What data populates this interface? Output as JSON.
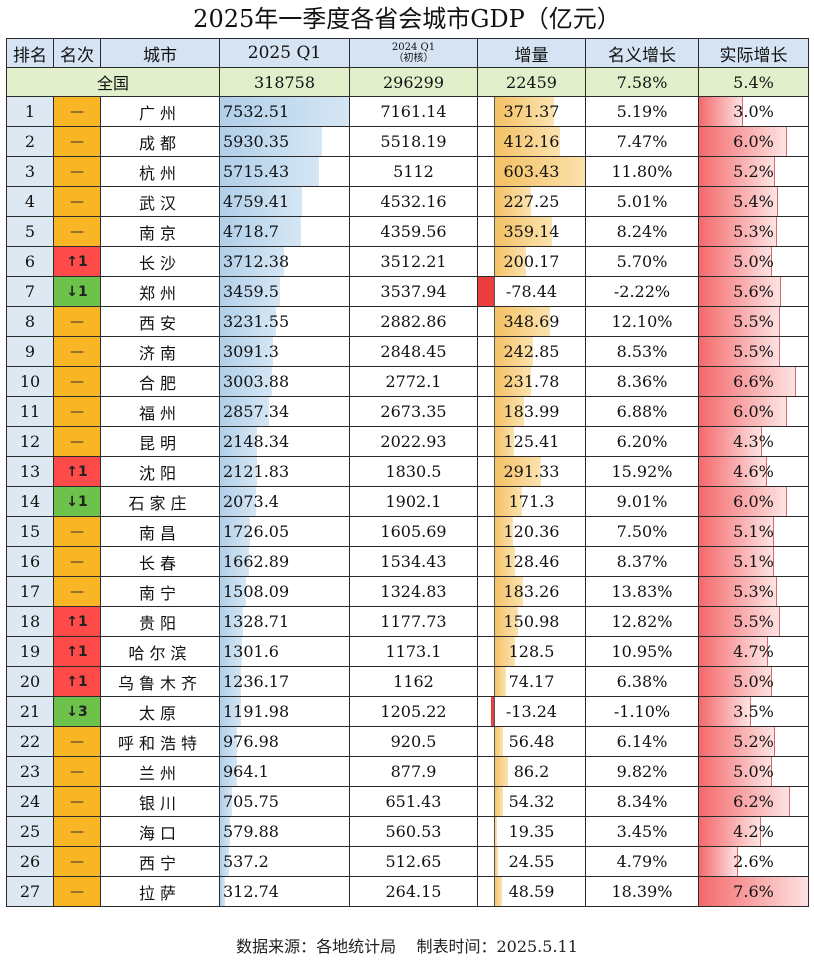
{
  "title": "2025年一季度各省会城市GDP（亿元）",
  "headers": [
    "排名",
    "名次",
    "城市",
    "2025 Q1",
    "2024 Q1",
    "增量",
    "名义增长",
    "实际增长"
  ],
  "header_2024_note": "（初核）",
  "total": {
    "label": "全国",
    "gdp_2025": "318758",
    "gdp_2024": "296299",
    "increase": "22459",
    "nominal": "7.58%",
    "real": "5.4%"
  },
  "colors": {
    "same": "#f8b624",
    "up": "#ff4a4a",
    "down": "#6cc24a",
    "gdp_bar": "#b0cfe9",
    "increase_bar": "#f4c062",
    "growth_bar": "#f4696b"
  },
  "rows": [
    {
      "rank": "1",
      "change": "—",
      "city": "广州",
      "gdp_2025": "7532.51",
      "gdp_2024": "7161.14",
      "increase": "371.37",
      "nominal": "5.19%",
      "real": "3.0%"
    },
    {
      "rank": "2",
      "change": "—",
      "city": "成都",
      "gdp_2025": "5930.35",
      "gdp_2024": "5518.19",
      "increase": "412.16",
      "nominal": "7.47%",
      "real": "6.0%"
    },
    {
      "rank": "3",
      "change": "—",
      "city": "杭州",
      "gdp_2025": "5715.43",
      "gdp_2024": "5112",
      "increase": "603.43",
      "nominal": "11.80%",
      "real": "5.2%"
    },
    {
      "rank": "4",
      "change": "—",
      "city": "武汉",
      "gdp_2025": "4759.41",
      "gdp_2024": "4532.16",
      "increase": "227.25",
      "nominal": "5.01%",
      "real": "5.4%"
    },
    {
      "rank": "5",
      "change": "—",
      "city": "南京",
      "gdp_2025": "4718.7",
      "gdp_2024": "4359.56",
      "increase": "359.14",
      "nominal": "8.24%",
      "real": "5.3%"
    },
    {
      "rank": "6",
      "change": "↑1",
      "city": "长沙",
      "gdp_2025": "3712.38",
      "gdp_2024": "3512.21",
      "increase": "200.17",
      "nominal": "5.70%",
      "real": "5.0%"
    },
    {
      "rank": "7",
      "change": "↓1",
      "city": "郑州",
      "gdp_2025": "3459.5",
      "gdp_2024": "3537.94",
      "increase": "-78.44",
      "nominal": "-2.22%",
      "real": "5.6%"
    },
    {
      "rank": "8",
      "change": "—",
      "city": "西安",
      "gdp_2025": "3231.55",
      "gdp_2024": "2882.86",
      "increase": "348.69",
      "nominal": "12.10%",
      "real": "5.5%"
    },
    {
      "rank": "9",
      "change": "—",
      "city": "济南",
      "gdp_2025": "3091.3",
      "gdp_2024": "2848.45",
      "increase": "242.85",
      "nominal": "8.53%",
      "real": "5.5%"
    },
    {
      "rank": "10",
      "change": "—",
      "city": "合肥",
      "gdp_2025": "3003.88",
      "gdp_2024": "2772.1",
      "increase": "231.78",
      "nominal": "8.36%",
      "real": "6.6%"
    },
    {
      "rank": "11",
      "change": "—",
      "city": "福州",
      "gdp_2025": "2857.34",
      "gdp_2024": "2673.35",
      "increase": "183.99",
      "nominal": "6.88%",
      "real": "6.0%"
    },
    {
      "rank": "12",
      "change": "—",
      "city": "昆明",
      "gdp_2025": "2148.34",
      "gdp_2024": "2022.93",
      "increase": "125.41",
      "nominal": "6.20%",
      "real": "4.3%"
    },
    {
      "rank": "13",
      "change": "↑1",
      "city": "沈阳",
      "gdp_2025": "2121.83",
      "gdp_2024": "1830.5",
      "increase": "291.33",
      "nominal": "15.92%",
      "real": "4.6%"
    },
    {
      "rank": "14",
      "change": "↓1",
      "city": "石家庄",
      "gdp_2025": "2073.4",
      "gdp_2024": "1902.1",
      "increase": "171.3",
      "nominal": "9.01%",
      "real": "6.0%"
    },
    {
      "rank": "15",
      "change": "—",
      "city": "南昌",
      "gdp_2025": "1726.05",
      "gdp_2024": "1605.69",
      "increase": "120.36",
      "nominal": "7.50%",
      "real": "5.1%"
    },
    {
      "rank": "16",
      "change": "—",
      "city": "长春",
      "gdp_2025": "1662.89",
      "gdp_2024": "1534.43",
      "increase": "128.46",
      "nominal": "8.37%",
      "real": "5.1%"
    },
    {
      "rank": "17",
      "change": "—",
      "city": "南宁",
      "gdp_2025": "1508.09",
      "gdp_2024": "1324.83",
      "increase": "183.26",
      "nominal": "13.83%",
      "real": "5.3%"
    },
    {
      "rank": "18",
      "change": "↑1",
      "city": "贵阳",
      "gdp_2025": "1328.71",
      "gdp_2024": "1177.73",
      "increase": "150.98",
      "nominal": "12.82%",
      "real": "5.5%"
    },
    {
      "rank": "19",
      "change": "↑1",
      "city": "哈尔滨",
      "gdp_2025": "1301.6",
      "gdp_2024": "1173.1",
      "increase": "128.5",
      "nominal": "10.95%",
      "real": "4.7%"
    },
    {
      "rank": "20",
      "change": "↑1",
      "city": "乌鲁木齐",
      "gdp_2025": "1236.17",
      "gdp_2024": "1162",
      "increase": "74.17",
      "nominal": "6.38%",
      "real": "5.0%"
    },
    {
      "rank": "21",
      "change": "↓3",
      "city": "太原",
      "gdp_2025": "1191.98",
      "gdp_2024": "1205.22",
      "increase": "-13.24",
      "nominal": "-1.10%",
      "real": "3.5%"
    },
    {
      "rank": "22",
      "change": "—",
      "city": "呼和浩特",
      "gdp_2025": "976.98",
      "gdp_2024": "920.5",
      "increase": "56.48",
      "nominal": "6.14%",
      "real": "5.2%"
    },
    {
      "rank": "23",
      "change": "—",
      "city": "兰州",
      "gdp_2025": "964.1",
      "gdp_2024": "877.9",
      "increase": "86.2",
      "nominal": "9.82%",
      "real": "5.0%"
    },
    {
      "rank": "24",
      "change": "—",
      "city": "银川",
      "gdp_2025": "705.75",
      "gdp_2024": "651.43",
      "increase": "54.32",
      "nominal": "8.34%",
      "real": "6.2%"
    },
    {
      "rank": "25",
      "change": "—",
      "city": "海口",
      "gdp_2025": "579.88",
      "gdp_2024": "560.53",
      "increase": "19.35",
      "nominal": "3.45%",
      "real": "4.2%"
    },
    {
      "rank": "26",
      "change": "—",
      "city": "西宁",
      "gdp_2025": "537.2",
      "gdp_2024": "512.65",
      "increase": "24.55",
      "nominal": "4.79%",
      "real": "2.6%"
    },
    {
      "rank": "27",
      "change": "—",
      "city": "拉萨",
      "gdp_2025": "312.74",
      "gdp_2024": "264.15",
      "increase": "48.59",
      "nominal": "18.39%",
      "real": "7.6%"
    }
  ],
  "footer": {
    "source": "数据来源：各地统计局",
    "date": "制表时间：2025.5.11"
  }
}
